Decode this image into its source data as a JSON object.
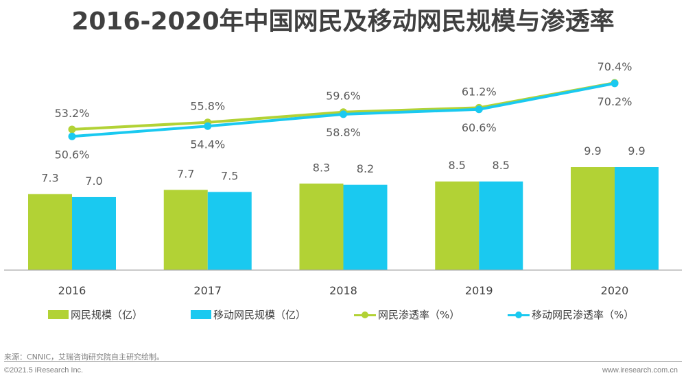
{
  "chart_data": {
    "type": "bar",
    "title": "2016-2020年中国网民及移动网民规模与渗透率",
    "xlabel": "",
    "ylabel": "",
    "categories": [
      "2016",
      "2017",
      "2018",
      "2019",
      "2020"
    ],
    "series": [
      {
        "name": "网民规模（亿）",
        "kind": "bar",
        "color": "#b2d235",
        "values": [
          7.3,
          7.7,
          8.3,
          8.5,
          9.9
        ],
        "labels": [
          "7.3",
          "7.7",
          "8.3",
          "8.5",
          "9.9"
        ]
      },
      {
        "name": "移动网民规模（亿）",
        "kind": "bar",
        "color": "#1ac9f0",
        "values": [
          7.0,
          7.5,
          8.2,
          8.5,
          9.9
        ],
        "labels": [
          "7.0",
          "7.5",
          "8.2",
          "8.5",
          "9.9"
        ]
      },
      {
        "name": "网民渗透率（%）",
        "kind": "line",
        "color": "#b2d235",
        "values": [
          53.2,
          55.8,
          59.6,
          61.2,
          70.4
        ],
        "labels": [
          "53.2%",
          "55.8%",
          "59.6%",
          "61.2%",
          "70.4%"
        ],
        "label_position": "above"
      },
      {
        "name": "移动网民渗透率（%）",
        "kind": "line",
        "color": "#1ac9f0",
        "values": [
          50.6,
          54.4,
          58.8,
          60.6,
          70.2
        ],
        "labels": [
          "50.6%",
          "54.4%",
          "58.8%",
          "60.6%",
          "70.2%"
        ],
        "label_position": "below"
      }
    ],
    "grid": false,
    "legend": "bottom"
  },
  "footer": {
    "source": "来源：CNNIC，艾瑞咨询研究院自主研究绘制。",
    "copyright": "©2021.5 iResearch Inc.",
    "website": "www.iresearch.com.cn"
  }
}
